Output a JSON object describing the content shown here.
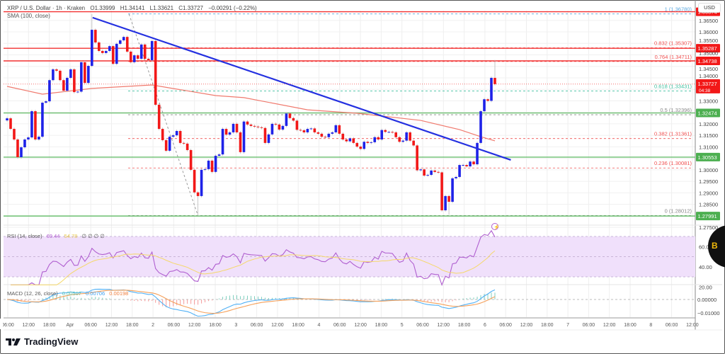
{
  "header": {
    "symbol": "XRP / U.S. Dollar · 1h · Kraken",
    "open": "O1.33999",
    "high": "H1.34141",
    "low": "L1.33621",
    "close": "C1.33727",
    "change": "−0.00291 (−0.22%)",
    "sma_label": "SMA (100, close)"
  },
  "currency": "USD",
  "brand": "TradingView",
  "colors": {
    "up": "#1e22e8",
    "down": "#f21818",
    "sma": "#f07a6e",
    "trend": "#2430e0",
    "support": "#6cc070",
    "resistance": "#f23030",
    "rsi": "#b05fd0",
    "rsi_ma": "#f5d86a",
    "macd": "#50b0f5",
    "signal": "#f5a05a",
    "rsi_band": "#f0e0fb"
  },
  "price_axis": [
    "1.36500",
    "1.36000",
    "1.35500",
    "1.35000",
    "1.34500",
    "1.34000",
    "1.33000",
    "1.32000",
    "1.31500",
    "1.31000",
    "1.30000",
    "1.29500",
    "1.29000",
    "1.28500",
    "1.27500"
  ],
  "level_badges": [
    {
      "value": "1.36874",
      "type": "resistance"
    },
    {
      "value": "1.35287",
      "type": "resistance"
    },
    {
      "value": "1.34738",
      "type": "resistance"
    },
    {
      "value": "1.32474",
      "type": "support"
    },
    {
      "value": "1.30553",
      "type": "support"
    },
    {
      "value": "1.27991",
      "type": "support"
    }
  ],
  "last_price": {
    "value": "1.33727",
    "countdown": "04:38"
  },
  "fib_levels": [
    {
      "label": "1 (1.36780)",
      "price": 1.3678,
      "color": "#5aa8e0"
    },
    {
      "label": "0.832 (1.35307)",
      "price": 1.35307,
      "color": "#f05050"
    },
    {
      "label": "0.764 (1.34711)",
      "price": 1.34711,
      "color": "#f05050"
    },
    {
      "label": "0.618 (1.33431)",
      "price": 1.33431,
      "color": "#40c0a0"
    },
    {
      "label": "0.5 (1.32396)",
      "price": 1.32396,
      "color": "#888888"
    },
    {
      "label": "0.382 (1.31361)",
      "price": 1.31361,
      "color": "#f05050"
    },
    {
      "label": "0.236 (1.30081)",
      "price": 1.30081,
      "color": "#f05050"
    },
    {
      "label": "0 (1.28012)",
      "price": 1.28012,
      "color": "#888888"
    }
  ],
  "time_axis": [
    "06:00",
    "12:00",
    "18:00",
    "Apr",
    "06:00",
    "12:00",
    "18:00",
    "2",
    "06:00",
    "12:00",
    "18:00",
    "3",
    "06:00",
    "12:00",
    "18:00",
    "4",
    "06:00",
    "12:00",
    "18:00",
    "5",
    "06:00",
    "12:00",
    "18:00",
    "6",
    "06:00",
    "12:00",
    "18:00",
    "7",
    "06:00",
    "12:00",
    "18:00",
    "8",
    "06:00",
    "12:00"
  ],
  "rsi": {
    "label": "RSI (14, close)",
    "value": "69.44",
    "ma_value": "54.78",
    "extras": "∅ ∅ ∅ ∅",
    "axis": [
      "60.00",
      "40.00",
      "20.00"
    ]
  },
  "macd": {
    "label": "MACD (12, 26, close)",
    "hist": "0.00507",
    "macd": "0.00706",
    "signal": "0.00198",
    "axis": [
      "0.00000",
      "−0.01000"
    ]
  },
  "overlay_badge": "B",
  "chart_data": {
    "type": "candlestick",
    "interval": "1h",
    "closes": [
      1.3224,
      1.3178,
      1.3132,
      1.3055,
      1.3098,
      1.3132,
      1.3141,
      1.3255,
      1.3132,
      1.3144,
      1.3292,
      1.3298,
      1.339,
      1.3437,
      1.3431,
      1.339,
      1.3344,
      1.34,
      1.3437,
      1.3338,
      1.334,
      1.3468,
      1.3378,
      1.3452,
      1.3609,
      1.3554,
      1.3517,
      1.3508,
      1.3517,
      1.3538,
      1.3461,
      1.3548,
      1.3563,
      1.3578,
      1.3514,
      1.3468,
      1.3498,
      1.3483,
      1.3545,
      1.3483,
      1.3477,
      1.356,
      1.3283,
      1.3178,
      1.3129,
      1.3083,
      1.3144,
      1.315,
      1.3169,
      1.3117,
      1.3114,
      1.3086,
      1.3,
      1.2902,
      1.2886,
      1.3,
      1.3003,
      1.304,
      1.2991,
      1.3061,
      1.3067,
      1.3178,
      1.3153,
      1.3163,
      1.32,
      1.3163,
      1.3077,
      1.321,
      1.3197,
      1.3191,
      1.3188,
      1.3185,
      1.3182,
      1.3117,
      1.3154,
      1.32,
      1.3197,
      1.3175,
      1.3191,
      1.3245,
      1.3225,
      1.3214,
      1.3174,
      1.3172,
      1.3163,
      1.3178,
      1.318,
      1.3163,
      1.3157,
      1.3144,
      1.3142,
      1.3157,
      1.3163,
      1.3194,
      1.3157,
      1.3132,
      1.3124,
      1.3137,
      1.3117,
      1.3101,
      1.3091,
      1.3122,
      1.3117,
      1.312,
      1.3142,
      1.3132,
      1.3173,
      1.3165,
      1.3165,
      1.3163,
      1.3142,
      1.3122,
      1.3127,
      1.3163,
      1.3127,
      1.3106,
      1.2998,
      1.3002,
      1.2975,
      1.2978,
      1.2997,
      1.2991,
      1.2989,
      1.2824,
      1.2886,
      1.2861,
      1.2963,
      1.2969,
      1.3021,
      1.3021,
      1.3015,
      1.3036,
      1.3024,
      1.3117,
      1.3255,
      1.3307,
      1.33,
      1.34,
      1.33727
    ],
    "first_open": 1.3215,
    "wick_extremes": [
      {
        "index": 24,
        "high": 1.3678
      },
      {
        "index": 54,
        "low": 1.28012
      },
      {
        "index": 125,
        "low": 1.2805
      },
      {
        "index": 138,
        "high": 1.3478
      }
    ],
    "sma100": [
      [
        0,
        1.3363
      ],
      [
        10,
        1.3329
      ],
      [
        24,
        1.3354
      ],
      [
        41,
        1.3369
      ],
      [
        59,
        1.3323
      ],
      [
        67,
        1.3314
      ],
      [
        85,
        1.3261
      ],
      [
        99,
        1.3246
      ],
      [
        117,
        1.3215
      ],
      [
        128,
        1.3175
      ],
      [
        134,
        1.3144
      ],
      [
        138,
        1.3126
      ]
    ],
    "trendline": [
      [
        24.2,
        1.3662
      ],
      [
        142.5,
        1.3043
      ]
    ],
    "fib_diagonal": [
      [
        34.5,
        1.3677
      ],
      [
        54,
        1.2801
      ]
    ],
    "horizontal_levels": {
      "resistance": [
        1.36874,
        1.35287,
        1.34738
      ],
      "support": [
        1.32474,
        1.30553,
        1.27991
      ]
    },
    "ylim": [
      1.2735,
      1.3705
    ]
  }
}
